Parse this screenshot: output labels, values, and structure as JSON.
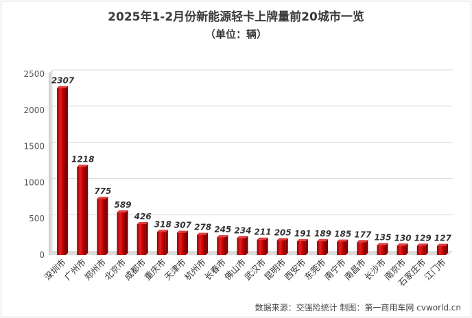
{
  "title": "2025年1-2月份新能源轻卡上牌量前20城市一览",
  "subtitle": "（单位：辆）",
  "source": "数据来源：交强险统计 制图：第一商用车网 cvworld.cn",
  "chart_data": {
    "type": "bar",
    "title": "2025年1-2月份新能源轻卡上牌量前20城市一览",
    "subtitle": "（单位：辆）",
    "categories": [
      "深圳市",
      "广州市",
      "郑州市",
      "北京市",
      "成都市",
      "重庆市",
      "天津市",
      "杭州市",
      "长春市",
      "佛山市",
      "武汉市",
      "昆明市",
      "西安市",
      "东莞市",
      "南宁市",
      "南昌市",
      "长沙市",
      "南京市",
      "石家庄市",
      "江门市"
    ],
    "values": [
      2307,
      1218,
      775,
      589,
      426,
      318,
      307,
      278,
      245,
      234,
      211,
      205,
      191,
      189,
      185,
      177,
      135,
      130,
      129,
      127
    ],
    "ylim": [
      0,
      2500
    ],
    "yticks": [
      0,
      500,
      1000,
      1500,
      2000,
      2500
    ],
    "grid": true,
    "legend": "none",
    "bar_color": "#c00000",
    "bar_dark_color": "#7a0000"
  }
}
